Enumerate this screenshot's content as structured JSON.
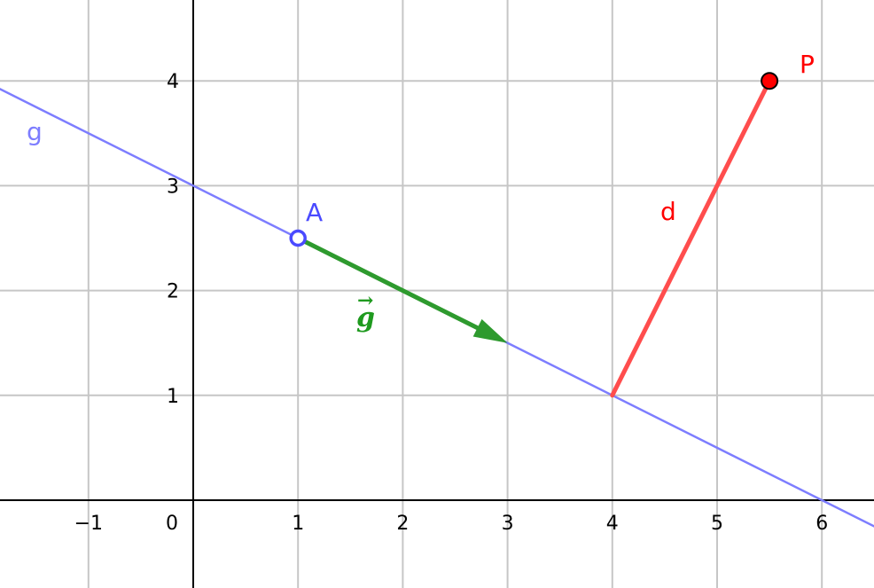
{
  "x_ticks": [
    "−1",
    "0",
    "1",
    "2",
    "3",
    "4",
    "5",
    "6"
  ],
  "y_ticks": [
    "1",
    "2",
    "3",
    "4"
  ],
  "line": {
    "label": "g",
    "color": "#7d7dff",
    "through": [
      [
        -2,
        4
      ],
      [
        7,
        -0.5
      ]
    ]
  },
  "point_A": {
    "label": "A",
    "x": 1,
    "y": 2.5,
    "color": "#4a4aff"
  },
  "vector": {
    "label": "g",
    "arrow": "→",
    "from": [
      1,
      2.5
    ],
    "to": [
      3,
      1.5
    ],
    "color": "#2e9a2e"
  },
  "point_P": {
    "label": "P",
    "x": 5.5,
    "y": 4,
    "color": "#ff0000"
  },
  "segment_d": {
    "label": "d",
    "from": [
      4,
      1
    ],
    "to": [
      5.5,
      4
    ],
    "color": "#ff4d4d"
  },
  "foot": {
    "x": 4,
    "y": 1
  }
}
